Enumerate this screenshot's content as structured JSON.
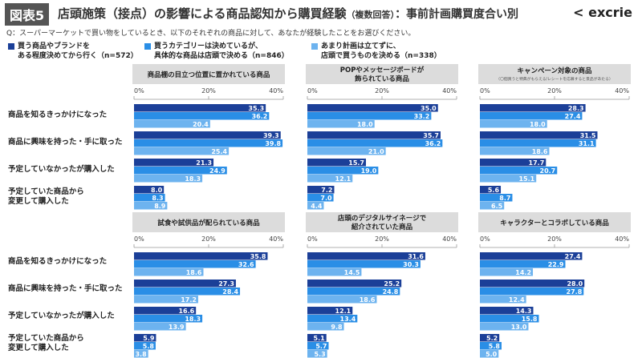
{
  "header": {
    "badge": "図表5",
    "title": "店頭施策（接点）の影響による商品認知から購買経験",
    "title_note": "（複数回答）",
    "title_suffix": "：事前計画購買度合い別",
    "logo": "excrie"
  },
  "question": "Q：スーパーマーケットで買い物をしているとき、以下のそれぞれの商品に対して、あなたが経験したことをお選びください。",
  "colors": {
    "series1": "#1b3f98",
    "series2": "#2a8ee6",
    "series3": "#6db3ef",
    "panel_header": "#dcdcdc"
  },
  "chart_data": {
    "type": "bar",
    "orientation": "horizontal",
    "xlim": [
      0,
      40
    ],
    "ticks": [
      "0%",
      "20%",
      "40%"
    ],
    "categories": [
      "商品を知るきっかけになった",
      "商品に興味を持った・手に取った",
      "予定していなかったが購入した",
      "予定していた商品から\n変更して購入した"
    ],
    "series_names": [
      "買う商品やブランドを\nある程度決めてから行く（n=572）",
      "買うカテゴリーは決めているが、\n具体的な商品は店頭で決める（n=846）",
      "あまり計画は立てずに、\n店頭で買うものを決める（n=338）"
    ],
    "panels": [
      {
        "title": "商品棚の目立つ位置に置かれている商品",
        "subtitle": "",
        "values": [
          [
            35.3,
            39.3,
            21.3,
            8.0
          ],
          [
            36.2,
            39.8,
            24.9,
            8.3
          ],
          [
            20.4,
            25.4,
            18.3,
            8.9
          ]
        ]
      },
      {
        "title": "POPやメッセージボードが\n飾られている商品",
        "subtitle": "",
        "values": [
          [
            35.0,
            35.7,
            15.7,
            7.2
          ],
          [
            33.2,
            36.2,
            19.0,
            7.0
          ],
          [
            18.0,
            21.0,
            12.1,
            4.4
          ]
        ]
      },
      {
        "title": "キャンペーン対象の商品",
        "subtitle": "（〇個買うと特典がもらえる/レシートを応募すると景品があたる）",
        "values": [
          [
            28.3,
            31.5,
            17.7,
            5.6
          ],
          [
            27.4,
            31.1,
            20.7,
            8.7
          ],
          [
            18.0,
            18.6,
            15.1,
            6.5
          ]
        ]
      },
      {
        "title": "試食や試供品が配られている商品",
        "subtitle": "",
        "values": [
          [
            35.8,
            27.3,
            16.6,
            5.9
          ],
          [
            32.6,
            28.4,
            18.3,
            5.8
          ],
          [
            18.6,
            17.2,
            13.9,
            3.8
          ]
        ]
      },
      {
        "title": "店頭のデジタルサイネージで\n紹介されていた商品",
        "subtitle": "",
        "values": [
          [
            31.6,
            25.2,
            12.1,
            5.1
          ],
          [
            30.3,
            24.8,
            13.4,
            5.7
          ],
          [
            14.5,
            18.6,
            9.8,
            5.3
          ]
        ]
      },
      {
        "title": "キャラクターとコラボしている商品",
        "subtitle": "",
        "values": [
          [
            27.4,
            28.0,
            14.3,
            5.2
          ],
          [
            22.9,
            27.8,
            15.8,
            5.8
          ],
          [
            14.2,
            12.4,
            13.0,
            5.0
          ]
        ]
      }
    ]
  }
}
